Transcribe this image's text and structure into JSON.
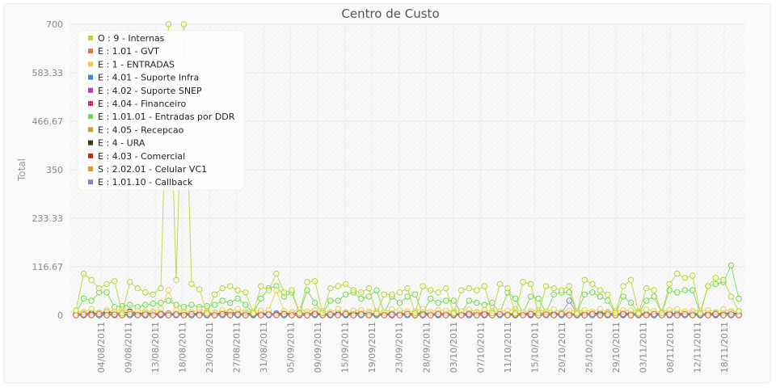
{
  "chart_data": {
    "type": "line",
    "title": "Centro de Custo",
    "xlabel": "",
    "ylabel": "Total",
    "ylim": [
      0,
      700
    ],
    "y_ticks": [
      "0",
      "116.67",
      "233.33",
      "350",
      "466.67",
      "583.33",
      "700"
    ],
    "x_ticks": [
      "04/08/2011",
      "09/08/2011",
      "13/08/2011",
      "18/08/2011",
      "23/08/2011",
      "27/08/2011",
      "31/08/2011",
      "05/09/2011",
      "09/09/2011",
      "15/09/2011",
      "19/09/2011",
      "23/09/2011",
      "28/09/2011",
      "03/10/2011",
      "07/10/2011",
      "11/10/2011",
      "15/10/2011",
      "20/10/2011",
      "25/10/2011",
      "29/10/2011",
      "03/11/2011",
      "08/11/2011",
      "12/11/2011",
      "18/11/2011"
    ],
    "grid": true,
    "legend_position": "top-left",
    "series": [
      {
        "name": "O : 9 - Internas",
        "color": "#b8d430",
        "values": [
          12,
          100,
          85,
          65,
          75,
          82,
          5,
          80,
          65,
          55,
          50,
          65,
          700,
          85,
          700,
          75,
          62,
          5,
          50,
          65,
          70,
          60,
          55,
          5,
          70,
          60,
          100,
          55,
          60,
          5,
          80,
          82,
          5,
          65,
          70,
          75,
          60,
          55,
          65,
          5,
          50,
          50,
          55,
          65,
          5,
          70,
          60,
          55,
          65,
          5,
          60,
          65,
          60,
          70,
          5,
          75,
          65,
          5,
          80,
          75,
          5,
          70,
          65,
          60,
          70,
          5,
          85,
          75,
          60,
          50,
          5,
          70,
          85,
          5,
          65,
          60,
          5,
          75,
          100,
          90,
          95,
          5,
          70,
          90,
          85,
          45,
          10
        ]
      },
      {
        "name": "E : 1.01 - GVT",
        "color": "#e07840",
        "values": [
          0,
          2,
          0,
          3,
          0,
          2,
          0,
          3,
          0,
          2,
          0,
          3,
          0,
          2,
          0,
          3,
          0,
          2,
          0,
          3,
          0,
          2,
          0,
          3,
          0,
          2,
          0,
          3,
          0,
          2,
          0,
          3,
          0,
          2,
          0,
          3,
          0,
          2,
          0,
          3,
          0,
          2,
          0,
          3,
          0,
          2,
          0,
          3,
          0,
          2,
          0,
          3,
          0,
          2,
          0,
          3,
          0,
          2,
          0,
          3,
          0,
          2,
          0,
          3,
          0,
          2,
          0,
          3,
          0,
          2,
          0,
          3,
          0,
          2,
          0,
          3,
          0,
          2,
          0,
          3,
          0,
          2,
          0,
          3,
          0,
          2,
          0
        ]
      },
      {
        "name": "E : 1 - ENTRADAS",
        "color": "#e6d244",
        "values": [
          10,
          8,
          15,
          6,
          12,
          9,
          14,
          7,
          11,
          10,
          8,
          15,
          60,
          12,
          10,
          8,
          14,
          9,
          7,
          12,
          10,
          15,
          8,
          9,
          11,
          12,
          60,
          10,
          8,
          14,
          9,
          12,
          10,
          8,
          15,
          7,
          11,
          12,
          9,
          10,
          8,
          14,
          12,
          9,
          10,
          15,
          8,
          12,
          11,
          9,
          10,
          14,
          8,
          12,
          10,
          9,
          11,
          15,
          8,
          10,
          12,
          9,
          14,
          8,
          11,
          10,
          12,
          9,
          15,
          8,
          10,
          12,
          11,
          9,
          14,
          10,
          8,
          12,
          15,
          9,
          10,
          11,
          12,
          8,
          14,
          10,
          9
        ]
      },
      {
        "name": "E : 4.01 - Suporte Infra",
        "color": "#2f8fdc",
        "values": [
          0,
          0,
          1,
          0,
          0,
          1,
          0,
          0,
          1,
          0,
          0,
          1,
          0,
          0,
          1,
          0,
          0,
          1,
          0,
          0,
          1,
          0,
          0,
          1,
          0,
          0,
          1,
          0,
          0,
          1,
          0,
          0,
          1,
          0,
          0,
          1,
          0,
          0,
          1,
          0,
          0,
          1,
          0,
          0,
          1,
          0,
          0,
          1,
          0,
          0,
          1,
          0,
          0,
          1,
          0,
          0,
          1,
          0,
          0,
          1,
          0,
          0,
          1,
          0,
          0,
          1,
          0,
          0,
          1,
          0,
          0,
          1,
          0,
          0,
          1,
          0,
          0,
          1,
          0,
          0,
          1,
          0,
          0,
          1,
          0,
          0,
          1
        ]
      },
      {
        "name": "E : 4.02 - Suporte SNEP",
        "color": "#b040c8",
        "values": [
          1,
          0,
          2,
          1,
          0,
          1,
          2,
          0,
          1,
          0,
          2,
          1,
          0,
          1,
          0,
          2,
          1,
          0,
          1,
          2,
          0,
          1,
          0,
          2,
          1,
          0,
          1,
          2,
          0,
          1,
          0,
          2,
          1,
          0,
          1,
          2,
          0,
          1,
          0,
          2,
          1,
          0,
          1,
          2,
          0,
          1,
          0,
          2,
          1,
          0,
          1,
          2,
          0,
          1,
          0,
          2,
          1,
          0,
          1,
          2,
          0,
          1,
          0,
          2,
          1,
          0,
          1,
          2,
          0,
          1,
          0,
          2,
          1,
          0,
          1,
          2,
          0,
          1,
          0,
          2,
          1,
          0,
          1,
          2,
          0,
          1,
          0
        ]
      },
      {
        "name": "E : 4.04 - Financeiro",
        "color": "#d8306a",
        "values": [
          0,
          1,
          0,
          0,
          1,
          0,
          0,
          1,
          0,
          0,
          1,
          0,
          0,
          1,
          0,
          0,
          1,
          0,
          0,
          1,
          0,
          0,
          1,
          0,
          0,
          1,
          0,
          0,
          1,
          0,
          0,
          1,
          0,
          0,
          1,
          0,
          0,
          1,
          0,
          0,
          1,
          0,
          0,
          1,
          0,
          0,
          1,
          0,
          0,
          1,
          0,
          0,
          1,
          0,
          0,
          1,
          0,
          0,
          1,
          0,
          0,
          1,
          0,
          0,
          1,
          0,
          0,
          1,
          0,
          0,
          1,
          0,
          0,
          1,
          0,
          0,
          1,
          0,
          0,
          1,
          0,
          0,
          1,
          0,
          0,
          1,
          0
        ]
      },
      {
        "name": "E : 1.01.01 - Entradas por DDR",
        "color": "#6cd84a",
        "values": [
          5,
          40,
          35,
          55,
          55,
          20,
          22,
          25,
          20,
          25,
          28,
          30,
          35,
          25,
          20,
          25,
          20,
          22,
          25,
          35,
          30,
          40,
          25,
          5,
          40,
          65,
          70,
          45,
          55,
          5,
          60,
          30,
          5,
          35,
          35,
          50,
          55,
          40,
          45,
          60,
          5,
          45,
          30,
          45,
          50,
          5,
          40,
          30,
          35,
          35,
          5,
          35,
          30,
          25,
          30,
          5,
          55,
          40,
          5,
          45,
          40,
          5,
          50,
          55,
          55,
          5,
          50,
          55,
          45,
          35,
          5,
          45,
          30,
          5,
          35,
          45,
          5,
          60,
          55,
          60,
          60,
          5,
          70,
          75,
          80,
          120,
          40
        ]
      },
      {
        "name": "E : 4.05 - Recepcao",
        "color": "#c8a030",
        "values": [
          2,
          4,
          3,
          5,
          2,
          6,
          3,
          4,
          5,
          2,
          3,
          4,
          5,
          3,
          2,
          4,
          5,
          3,
          2,
          4,
          3,
          5,
          2,
          3,
          4,
          5,
          3,
          2,
          4,
          3,
          5,
          2,
          3,
          4,
          5,
          3,
          2,
          4,
          3,
          5,
          2,
          3,
          4,
          5,
          3,
          2,
          4,
          3,
          5,
          2,
          3,
          4,
          5,
          3,
          2,
          4,
          3,
          5,
          2,
          3,
          4,
          5,
          3,
          2,
          4,
          3,
          5,
          2,
          3,
          4,
          5,
          3,
          2,
          4,
          3,
          5,
          2,
          3,
          4,
          5,
          3,
          2,
          4,
          3,
          5,
          2,
          3
        ]
      },
      {
        "name": "E : 4 - URA",
        "color": "#3a3a10",
        "values": [
          2,
          3,
          5,
          4,
          8,
          6,
          5,
          9,
          4,
          6,
          3,
          5,
          4,
          3,
          6,
          2,
          4,
          5,
          3,
          6,
          8,
          4,
          3,
          5,
          2,
          4,
          3,
          5,
          4,
          6,
          3,
          5,
          2,
          4,
          3,
          5,
          4,
          6,
          3,
          5,
          2,
          4,
          3,
          5,
          4,
          6,
          3,
          5,
          2,
          4,
          3,
          5,
          4,
          6,
          3,
          5,
          2,
          4,
          3,
          5,
          4,
          6,
          3,
          5,
          2,
          4,
          3,
          5,
          4,
          6,
          3,
          5,
          2,
          4,
          3,
          5,
          4,
          6,
          3,
          5,
          2,
          4,
          3,
          5,
          4,
          6,
          3
        ]
      },
      {
        "name": "E : 4.03 - Comercial",
        "color": "#c02818",
        "values": [
          1,
          2,
          1,
          3,
          1,
          2,
          1,
          3,
          1,
          2,
          1,
          3,
          1,
          2,
          1,
          3,
          1,
          2,
          1,
          3,
          1,
          2,
          1,
          3,
          1,
          2,
          1,
          3,
          1,
          2,
          1,
          3,
          1,
          2,
          1,
          3,
          1,
          2,
          1,
          3,
          1,
          2,
          1,
          3,
          1,
          2,
          1,
          3,
          1,
          2,
          1,
          3,
          1,
          2,
          1,
          3,
          1,
          2,
          1,
          3,
          1,
          2,
          1,
          3,
          1,
          2,
          1,
          3,
          1,
          2,
          1,
          3,
          1,
          2,
          1,
          3,
          1,
          2,
          1,
          3,
          1,
          2,
          1,
          3,
          1,
          2,
          1
        ]
      },
      {
        "name": "S : 2.02.01 - Celular VC1",
        "color": "#e09820",
        "values": [
          0,
          1,
          0,
          1,
          0,
          1,
          0,
          1,
          0,
          1,
          0,
          1,
          0,
          1,
          0,
          1,
          0,
          1,
          0,
          1,
          0,
          1,
          0,
          1,
          0,
          1,
          0,
          1,
          0,
          1,
          0,
          1,
          0,
          1,
          0,
          1,
          0,
          1,
          0,
          1,
          0,
          1,
          0,
          1,
          0,
          1,
          0,
          1,
          0,
          1,
          0,
          1,
          0,
          1,
          0,
          1,
          0,
          1,
          0,
          1,
          0,
          1,
          0,
          1,
          0,
          1,
          0,
          1,
          0,
          1,
          0,
          1,
          0,
          1,
          0,
          1,
          0,
          1,
          0,
          1,
          0,
          1,
          0,
          1,
          0,
          1,
          0
        ]
      },
      {
        "name": "E : 1.01.10 - Callback",
        "color": "#9080c8",
        "values": [
          3,
          5,
          4,
          6,
          3,
          5,
          4,
          3,
          5,
          4,
          6,
          3,
          5,
          4,
          3,
          5,
          4,
          6,
          3,
          5,
          4,
          3,
          5,
          4,
          6,
          3,
          5,
          4,
          3,
          5,
          4,
          6,
          3,
          5,
          4,
          3,
          5,
          4,
          6,
          3,
          5,
          4,
          3,
          5,
          4,
          6,
          3,
          5,
          4,
          3,
          5,
          4,
          6,
          3,
          5,
          4,
          3,
          5,
          4,
          6,
          3,
          5,
          4,
          3,
          35,
          4,
          6,
          3,
          5,
          4,
          3,
          5,
          4,
          6,
          3,
          5,
          4,
          3,
          5,
          4,
          6,
          3,
          5,
          4,
          3,
          5,
          4
        ]
      }
    ]
  }
}
